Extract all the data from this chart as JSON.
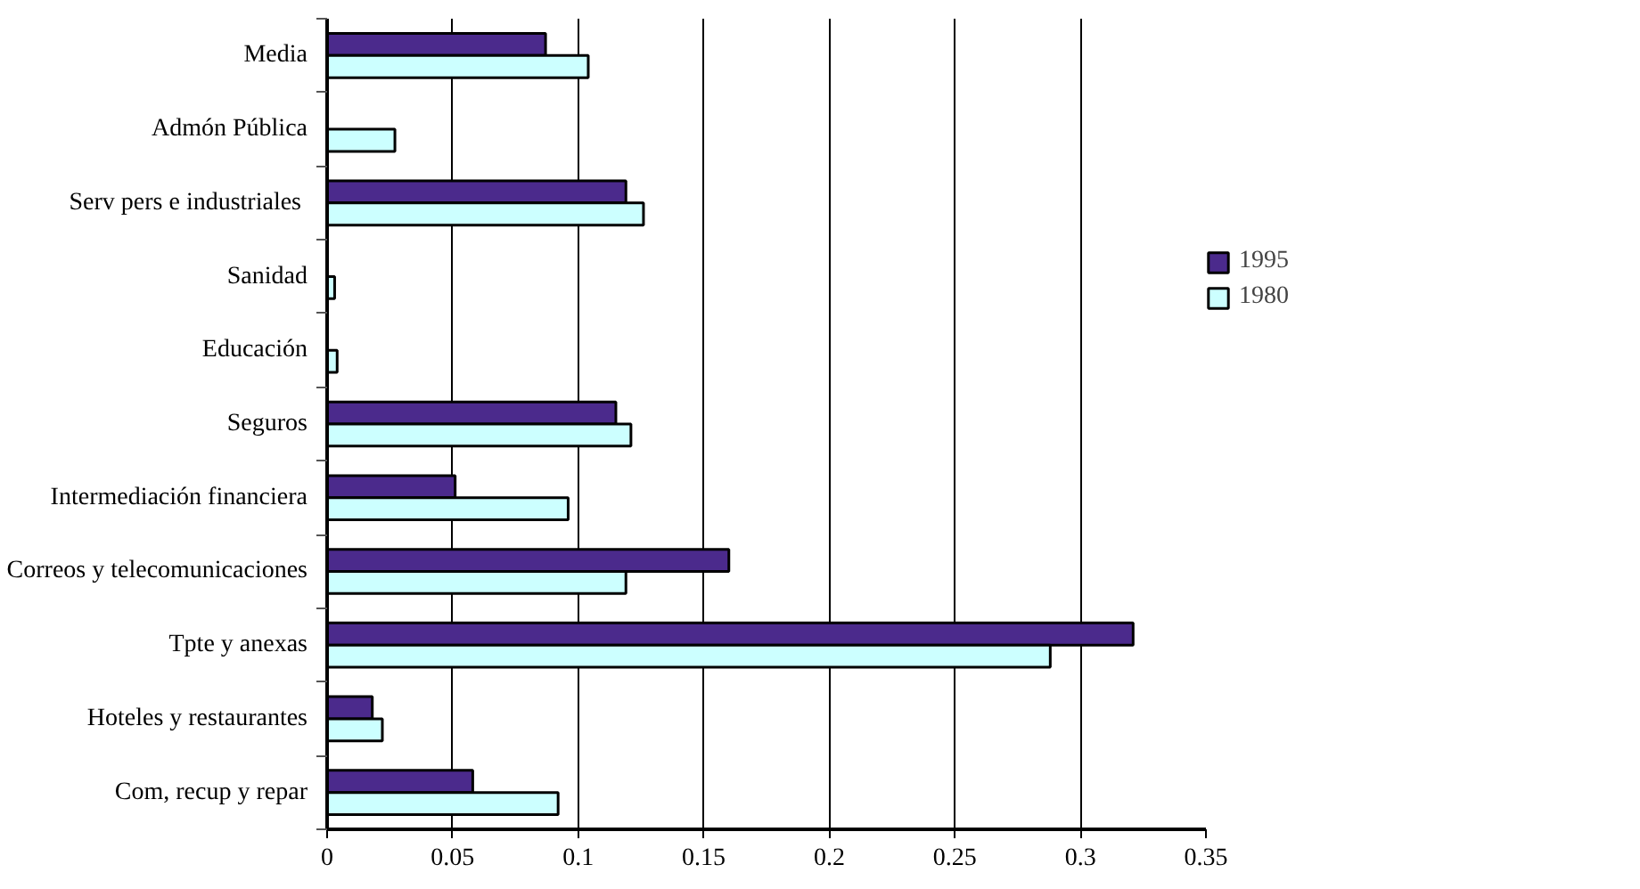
{
  "chart_data": {
    "type": "bar",
    "orientation": "horizontal",
    "categories": [
      "Media",
      "Admón Pública",
      "Serv pers  e industriales",
      "Sanidad",
      "Educación",
      "Seguros",
      "Intermediación financiera",
      "Correos y telecomunicaciones",
      "Tpte y anexas",
      "Hoteles y restaurantes",
      "Com, recup y repar"
    ],
    "series": [
      {
        "name": "1995",
        "color": "#4b2a8c",
        "values": [
          0.087,
          null,
          0.119,
          null,
          null,
          0.115,
          0.051,
          0.16,
          0.321,
          0.018,
          0.058
        ]
      },
      {
        "name": "1980",
        "color": "#ccffff",
        "values": [
          0.104,
          0.027,
          0.126,
          0.003,
          0.004,
          0.121,
          0.096,
          0.119,
          0.288,
          0.022,
          0.092
        ]
      }
    ],
    "xlim": [
      0,
      0.35
    ],
    "xticks": [
      0,
      0.05,
      0.1,
      0.15,
      0.2,
      0.25,
      0.3,
      0.35
    ],
    "grid": "x",
    "legend": "right"
  }
}
